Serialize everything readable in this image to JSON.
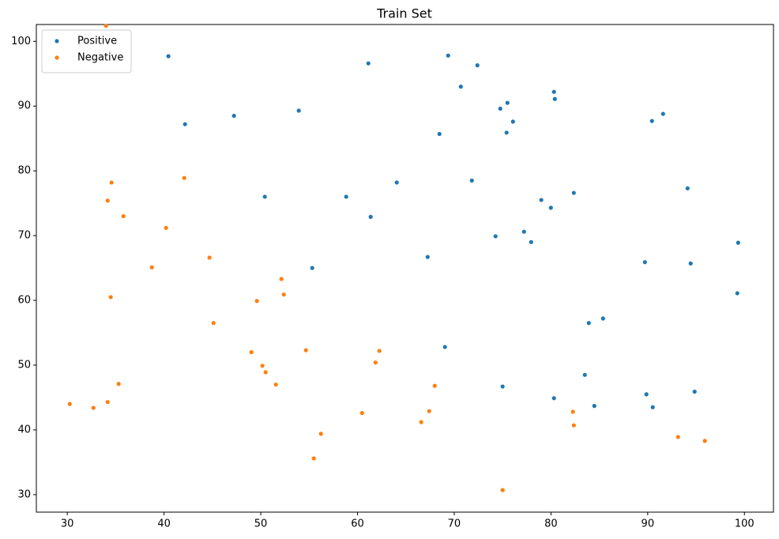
{
  "chart_data": {
    "type": "scatter",
    "title": "Train Set",
    "xlim": [
      26.8,
      103.0
    ],
    "ylim": [
      27.3,
      102.6
    ],
    "xticks": [
      30,
      40,
      50,
      60,
      70,
      80,
      90,
      100
    ],
    "yticks": [
      30,
      40,
      50,
      60,
      70,
      80,
      90,
      100
    ],
    "legend": "upper left",
    "grid": false,
    "series": [
      {
        "name": "Positive",
        "color": "#1f77b4",
        "x": [
          40.45,
          61.12,
          69.37,
          72.39,
          70.68,
          42.17,
          47.23,
          53.93,
          75.5,
          74.76,
          80.31,
          80.4,
          76.07,
          75.41,
          68.47,
          90.44,
          91.59,
          64.06,
          71.82,
          58.83,
          50.42,
          61.36,
          79.0,
          79.99,
          82.36,
          94.12,
          77.21,
          77.95,
          74.27,
          67.25,
          55.32,
          89.71,
          94.44,
          99.35,
          99.26,
          83.91,
          85.38,
          69.04,
          83.5,
          75.0,
          80.31,
          89.87,
          94.85,
          84.48,
          90.52
        ],
        "values": [
          97.7,
          96.6,
          97.8,
          96.3,
          93.0,
          87.2,
          88.5,
          89.3,
          90.5,
          89.6,
          92.2,
          91.1,
          87.6,
          85.9,
          85.7,
          87.7,
          88.8,
          78.2,
          78.5,
          76.0,
          76.0,
          72.9,
          75.5,
          74.3,
          76.6,
          77.3,
          70.6,
          69.0,
          69.9,
          66.7,
          65.0,
          65.9,
          65.7,
          68.9,
          61.1,
          56.5,
          57.2,
          52.8,
          48.5,
          46.7,
          44.9,
          45.5,
          45.9,
          43.7,
          43.5
        ]
      },
      {
        "name": "Negative",
        "color": "#ff7f0e",
        "x": [
          34.0,
          42.09,
          34.57,
          34.17,
          35.8,
          40.21,
          44.7,
          38.74,
          52.13,
          52.38,
          49.6,
          34.49,
          45.11,
          54.67,
          62.26,
          49.03,
          61.86,
          50.17,
          50.5,
          51.56,
          35.31,
          67.98,
          30.25,
          32.7,
          34.17,
          60.47,
          67.41,
          66.59,
          56.22,
          82.27,
          82.36,
          55.48,
          93.14,
          95.91,
          75.0
        ],
        "values": [
          102.4,
          78.9,
          78.2,
          75.4,
          73.0,
          71.2,
          66.6,
          65.1,
          63.3,
          60.9,
          59.9,
          60.5,
          56.5,
          52.3,
          52.2,
          52.0,
          50.4,
          49.9,
          48.9,
          47.0,
          47.1,
          46.8,
          44.0,
          43.4,
          44.3,
          42.6,
          42.9,
          41.2,
          39.4,
          42.8,
          40.7,
          35.6,
          38.9,
          38.3,
          30.7
        ]
      }
    ]
  }
}
